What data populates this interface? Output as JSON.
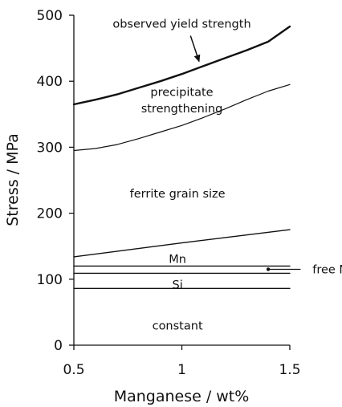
{
  "chart_data": {
    "type": "line",
    "xlabel": "Manganese / wt%",
    "ylabel": "Stress / MPa",
    "xlim": [
      0.5,
      1.5
    ],
    "ylim": [
      0,
      500
    ],
    "x_ticks": [
      "0.5",
      "1",
      "1.5"
    ],
    "x_tick_values": [
      0.5,
      1,
      1.5
    ],
    "y_ticks": [
      "0",
      "100",
      "200",
      "300",
      "400",
      "500"
    ],
    "y_tick_values": [
      0,
      100,
      200,
      300,
      400,
      500
    ],
    "grid": false,
    "legend": "none",
    "series": [
      {
        "id": "total",
        "x": [
          0.5,
          0.6,
          0.7,
          0.8,
          0.9,
          1.0,
          1.1,
          1.2,
          1.3,
          1.4,
          1.5
        ],
        "y": [
          365,
          372,
          380,
          390,
          400,
          411,
          423,
          435,
          447,
          460,
          483
        ],
        "color": "#111111",
        "width": 2.4
      },
      {
        "id": "precipitate-top",
        "x": [
          0.5,
          0.6,
          0.7,
          0.8,
          0.9,
          1.0,
          1.1,
          1.2,
          1.3,
          1.4,
          1.5
        ],
        "y": [
          295,
          298,
          304,
          313,
          323,
          333,
          345,
          358,
          372,
          385,
          395
        ],
        "color": "#111111",
        "width": 1.2
      },
      {
        "id": "grain-top",
        "x": [
          0.5,
          1.0,
          1.5
        ],
        "y": [
          134,
          155,
          175
        ],
        "color": "#111111",
        "width": 1.4
      },
      {
        "id": "mn-top",
        "x": [
          0.5,
          1.5
        ],
        "y": [
          120,
          120
        ],
        "color": "#111111",
        "width": 1.4
      },
      {
        "id": "freen-top",
        "x": [
          0.5,
          1.5
        ],
        "y": [
          109,
          109
        ],
        "color": "#111111",
        "width": 1.4
      },
      {
        "id": "si-top",
        "x": [
          0.5,
          1.5
        ],
        "y": [
          86,
          86
        ],
        "color": "#111111",
        "width": 1.4
      }
    ],
    "annotations": [
      {
        "text": "observed yield strength",
        "x": 1.0,
        "y": 487
      },
      {
        "text": "precipitate",
        "x": 1.0,
        "y": 384
      },
      {
        "text": "strengthening",
        "x": 1.0,
        "y": 359
      },
      {
        "text": "ferrite grain size",
        "x": 0.98,
        "y": 230
      },
      {
        "text": "Mn",
        "x": 0.98,
        "y": 131
      },
      {
        "text": "Si",
        "x": 0.98,
        "y": 92
      },
      {
        "text": "constant",
        "x": 0.98,
        "y": 30
      },
      {
        "text": "free N",
        "x": 1.605,
        "y": 115
      }
    ],
    "arrow": {
      "from": [
        1.04,
        469
      ],
      "to": [
        1.08,
        430
      ]
    },
    "pointer": {
      "dot": [
        1.4,
        115
      ],
      "to": [
        1.55,
        115
      ]
    }
  }
}
